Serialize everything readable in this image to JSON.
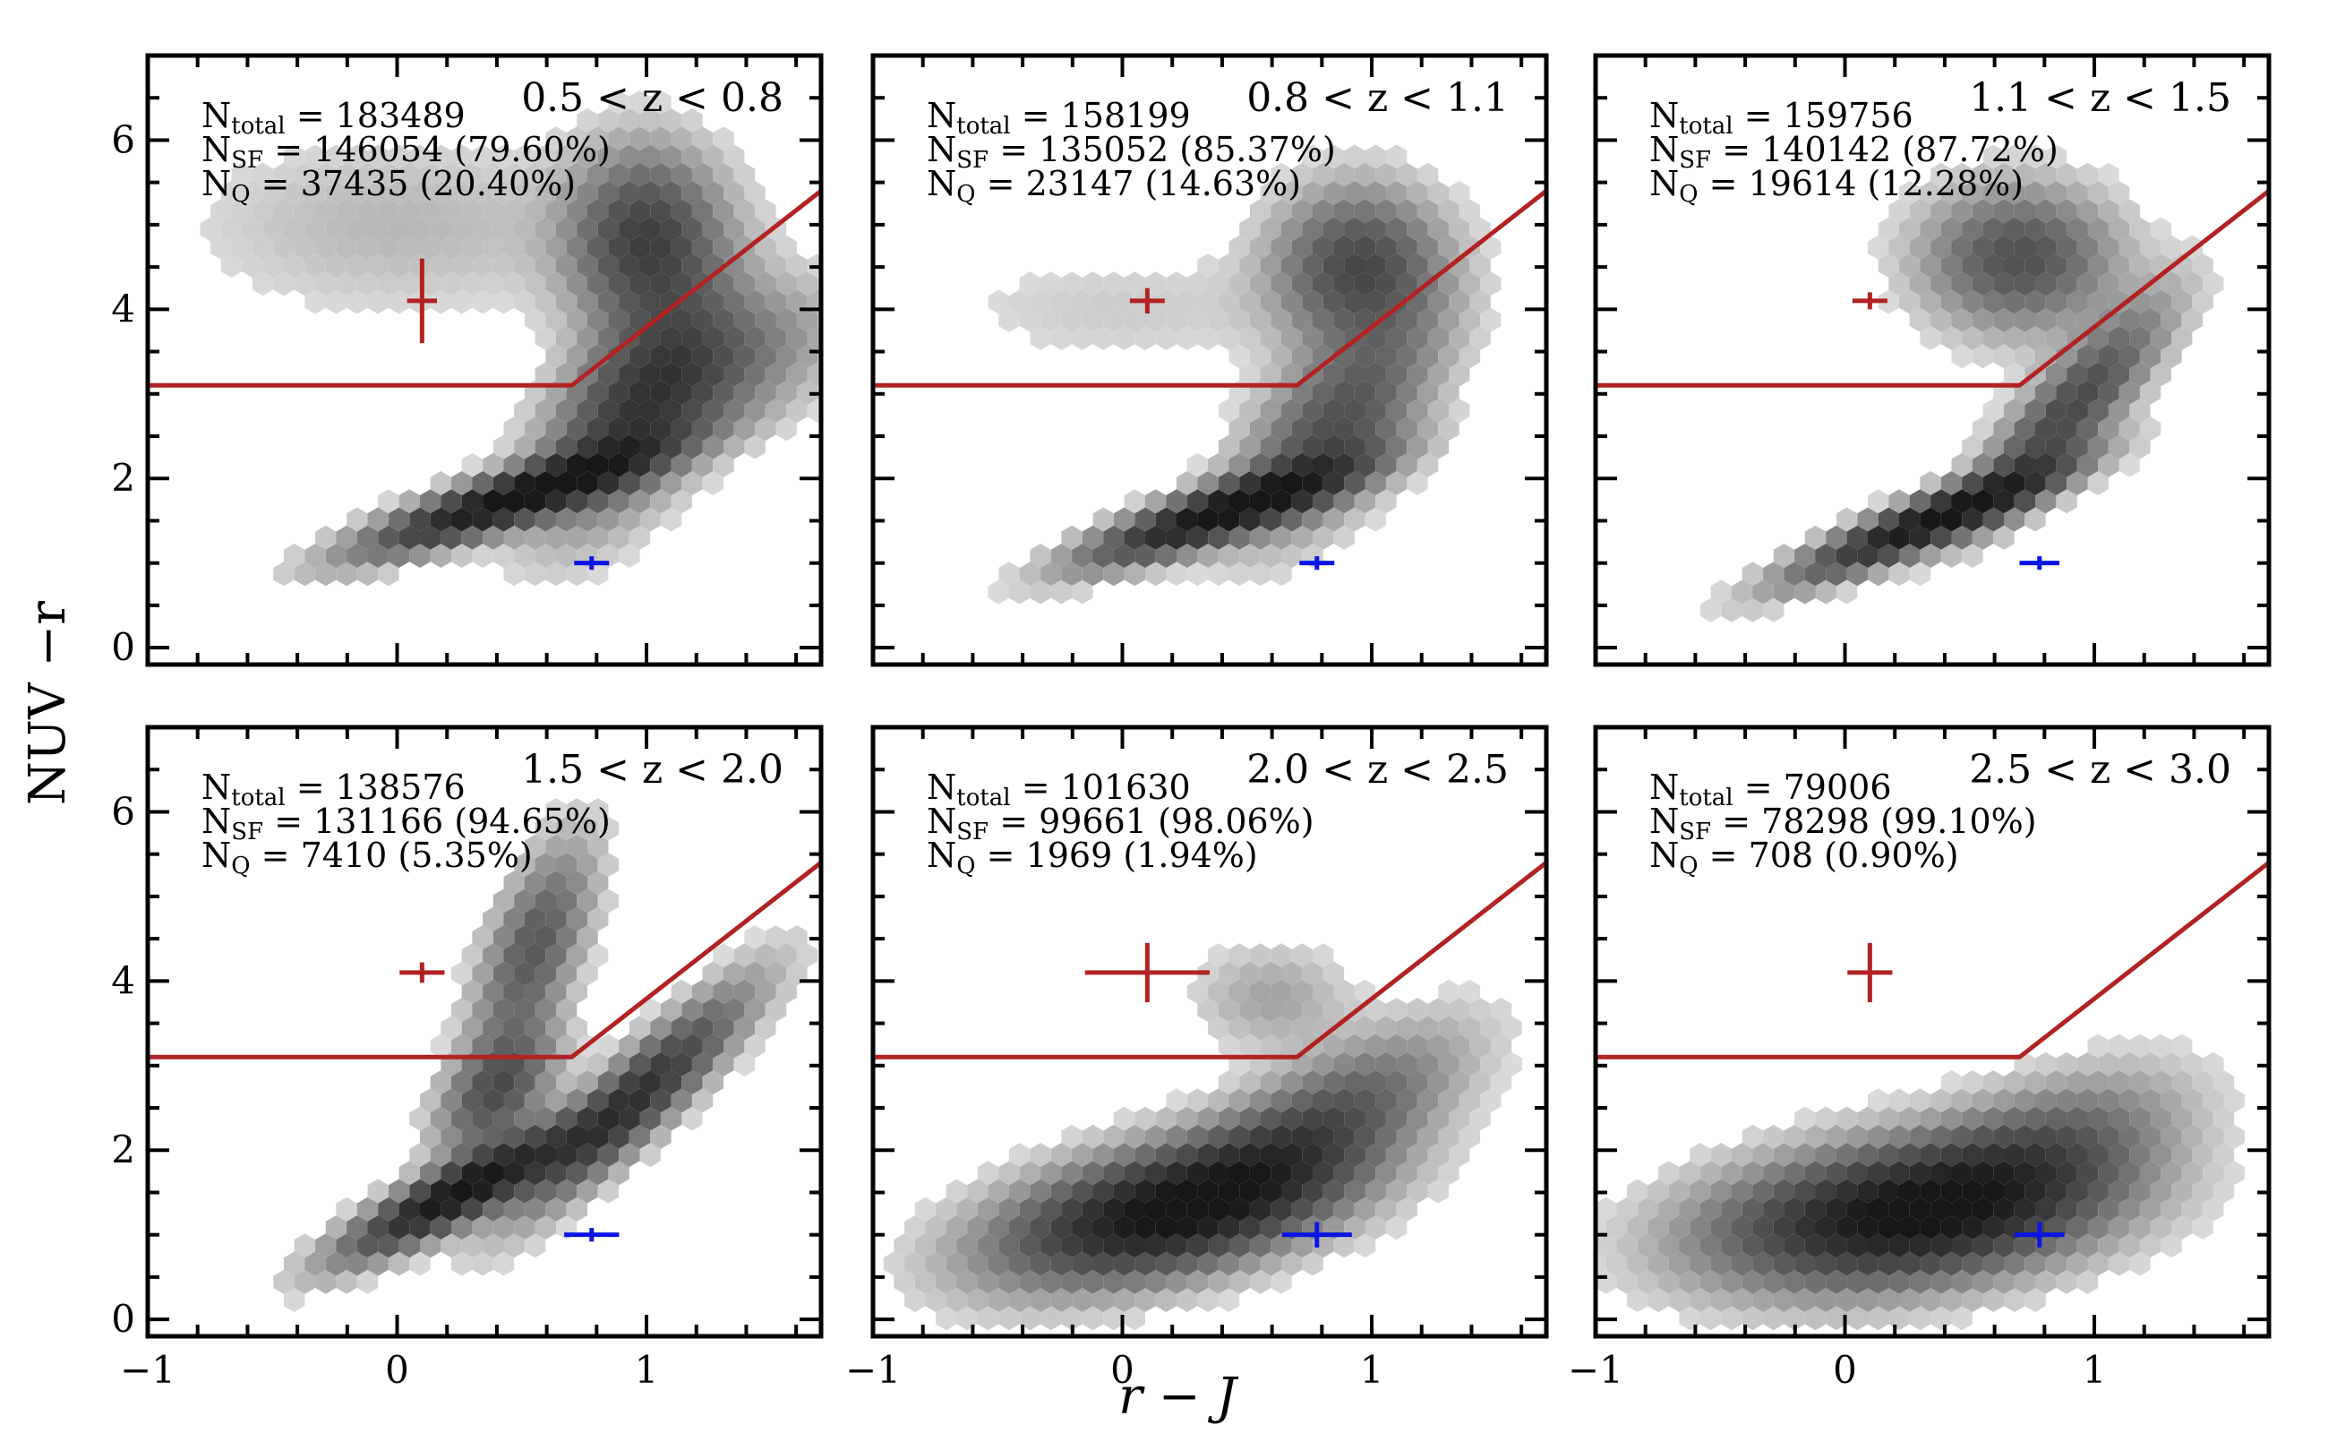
{
  "chart_data": {
    "type": "heatmap",
    "description_type": "hexbin",
    "xlabel": "r − J",
    "ylabel": "NUV −r",
    "xlim": [
      -1,
      1.7
    ],
    "ylim": [
      -0.2,
      7.0
    ],
    "xticks": [
      -1,
      0,
      1
    ],
    "xtick_labels": [
      "−1",
      "0",
      "1"
    ],
    "yticks": [
      0,
      2,
      4,
      6
    ],
    "ytick_labels": [
      "0",
      "2",
      "4",
      "6"
    ],
    "colormap": "Greys",
    "grid": false,
    "quiescent_boundary": {
      "color": "#b22222",
      "points": [
        [
          -1,
          3.1
        ],
        [
          0.7,
          3.1
        ],
        [
          1.7,
          5.4
        ]
      ]
    },
    "panels": [
      {
        "zrange": "0.5 < z < 0.8",
        "n_total": "183489",
        "n_sf": "146054 (79.60%)",
        "n_q": "37435 (20.40%)",
        "red_error": {
          "x": 0.1,
          "y": 4.1,
          "xerr": 0.06,
          "yerr": 0.5
        },
        "blue_error": {
          "x": 0.78,
          "y": 1.0,
          "xerr": 0.07,
          "yerr": 0.08
        },
        "density_components": [
          {
            "cx": 0.45,
            "cy": 1.75,
            "sx": 0.38,
            "sy": 0.42,
            "rho": 0.87,
            "w": 1.0
          },
          {
            "cx": 0.95,
            "cy": 2.8,
            "sx": 0.25,
            "sy": 0.9,
            "rho": 0.6,
            "w": 0.55
          },
          {
            "cx": 1.0,
            "cy": 4.8,
            "sx": 0.2,
            "sy": 0.7,
            "rho": 0.0,
            "w": 0.6
          },
          {
            "cx": 0.0,
            "cy": 5.0,
            "sx": 0.55,
            "sy": 0.7,
            "rho": 0.0,
            "w": 0.1
          },
          {
            "cx": 1.3,
            "cy": 3.3,
            "sx": 0.3,
            "sy": 0.6,
            "rho": 0.5,
            "w": 0.3
          }
        ]
      },
      {
        "zrange": "0.8 < z < 1.1",
        "n_total": "158199",
        "n_sf": "135052 (85.37%)",
        "n_q": "23147 (14.63%)",
        "red_error": {
          "x": 0.1,
          "y": 4.1,
          "xerr": 0.07,
          "yerr": 0.15
        },
        "blue_error": {
          "x": 0.78,
          "y": 1.0,
          "xerr": 0.07,
          "yerr": 0.08
        },
        "density_components": [
          {
            "cx": 0.4,
            "cy": 1.6,
            "sx": 0.35,
            "sy": 0.4,
            "rho": 0.85,
            "w": 1.0
          },
          {
            "cx": 0.85,
            "cy": 2.6,
            "sx": 0.25,
            "sy": 0.8,
            "rho": 0.6,
            "w": 0.5
          },
          {
            "cx": 0.95,
            "cy": 4.5,
            "sx": 0.22,
            "sy": 0.6,
            "rho": 0.0,
            "w": 0.55
          },
          {
            "cx": 0.0,
            "cy": 4.0,
            "sx": 0.5,
            "sy": 0.45,
            "rho": 0.0,
            "w": 0.06
          }
        ]
      },
      {
        "zrange": "1.1 < z < 1.5",
        "n_total": "159756",
        "n_sf": "140142 (87.72%)",
        "n_q": "19614 (12.28%)",
        "red_error": {
          "x": 0.1,
          "y": 4.1,
          "xerr": 0.07,
          "yerr": 0.1
        },
        "blue_error": {
          "x": 0.78,
          "y": 1.0,
          "xerr": 0.08,
          "yerr": 0.08
        },
        "density_components": [
          {
            "cx": 0.35,
            "cy": 1.5,
            "sx": 0.35,
            "sy": 0.45,
            "rho": 0.9,
            "w": 1.0
          },
          {
            "cx": 0.9,
            "cy": 2.8,
            "sx": 0.25,
            "sy": 0.8,
            "rho": 0.85,
            "w": 0.55
          },
          {
            "cx": 0.7,
            "cy": 4.6,
            "sx": 0.25,
            "sy": 0.55,
            "rho": 0.0,
            "w": 0.5
          }
        ]
      },
      {
        "zrange": "1.5 < z < 2.0",
        "n_total": "138576",
        "n_sf": "131166 (94.65%)",
        "n_q": "7410 (5.35%)",
        "red_error": {
          "x": 0.1,
          "y": 4.1,
          "xerr": 0.09,
          "yerr": 0.12
        },
        "blue_error": {
          "x": 0.78,
          "y": 1.0,
          "xerr": 0.11,
          "yerr": 0.08
        },
        "density_components": [
          {
            "cx": 0.25,
            "cy": 1.5,
            "sx": 0.3,
            "sy": 0.5,
            "rho": 0.88,
            "w": 1.0
          },
          {
            "cx": 0.95,
            "cy": 2.6,
            "sx": 0.3,
            "sy": 0.85,
            "rho": 0.9,
            "w": 0.7
          },
          {
            "cx": 0.55,
            "cy": 4.4,
            "sx": 0.15,
            "sy": 0.8,
            "rho": 0.6,
            "w": 0.45
          },
          {
            "cx": 0.4,
            "cy": 2.7,
            "sx": 0.15,
            "sy": 0.5,
            "rho": 0.5,
            "w": 0.5
          }
        ]
      },
      {
        "zrange": "2.0 < z < 2.5",
        "n_total": "101630",
        "n_sf": "99661 (98.06%)",
        "n_q": "1969 (1.94%)",
        "red_error": {
          "x": 0.1,
          "y": 4.1,
          "xerr": 0.25,
          "yerr": 0.35
        },
        "blue_error": {
          "x": 0.78,
          "y": 1.0,
          "xerr": 0.14,
          "yerr": 0.15
        },
        "density_components": [
          {
            "cx": 0.2,
            "cy": 1.3,
            "sx": 0.45,
            "sy": 0.55,
            "rho": 0.5,
            "w": 1.0
          },
          {
            "cx": 0.8,
            "cy": 2.3,
            "sx": 0.35,
            "sy": 0.7,
            "rho": 0.7,
            "w": 0.45
          },
          {
            "cx": 0.6,
            "cy": 3.8,
            "sx": 0.2,
            "sy": 0.4,
            "rho": 0.0,
            "w": 0.15
          }
        ]
      },
      {
        "zrange": "2.5 < z < 3.0",
        "n_total": "79006",
        "n_sf": "78298 (99.10%)",
        "n_q": "708 (0.90%)",
        "red_error": {
          "x": 0.1,
          "y": 4.1,
          "xerr": 0.09,
          "yerr": 0.35
        },
        "blue_error": {
          "x": 0.78,
          "y": 1.0,
          "xerr": 0.1,
          "yerr": 0.15
        },
        "density_components": [
          {
            "cx": 0.25,
            "cy": 1.25,
            "sx": 0.5,
            "sy": 0.55,
            "rho": 0.3,
            "w": 1.0
          },
          {
            "cx": 0.8,
            "cy": 2.0,
            "sx": 0.35,
            "sy": 0.6,
            "rho": 0.5,
            "w": 0.35
          }
        ]
      }
    ]
  },
  "colors": {
    "boundary": "#b22222",
    "red_error": "#b22222",
    "blue_error": "#0a14e6",
    "frame": "#000000"
  }
}
